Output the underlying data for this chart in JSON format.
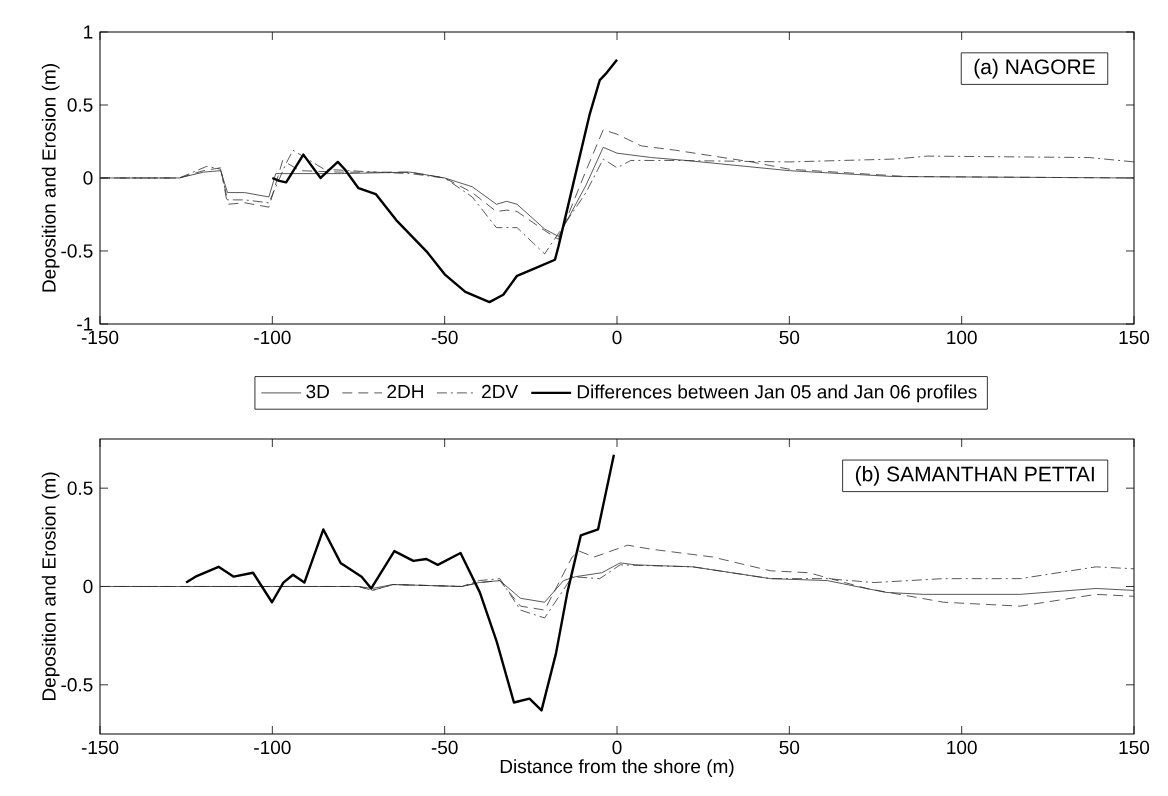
{
  "chart_data": [
    {
      "type": "line",
      "ylabel": "Deposition and Erosion (m)",
      "xlim": [
        -150,
        150
      ],
      "xticks": [
        -150,
        -100,
        -50,
        0,
        50,
        100,
        150
      ],
      "ylim": [
        -1,
        1
      ],
      "yticks": [
        -1,
        -0.5,
        0,
        0.5,
        1
      ],
      "legend": "bottom",
      "annotations": [
        "(a) NAGORE"
      ],
      "series": [
        {
          "name": "3D",
          "color": "#303030",
          "line_style": "solid",
          "x": [
            -150,
            -127,
            -120,
            -115,
            -113,
            -108,
            -101,
            -99,
            -95,
            -80,
            -60,
            -50,
            -42,
            -35,
            -32,
            -29,
            -21,
            -17,
            -9,
            -4,
            0,
            10,
            20,
            50,
            80,
            150
          ],
          "values": [
            0,
            0,
            0.04,
            0.05,
            -0.1,
            -0.1,
            -0.13,
            0.03,
            0.03,
            0.03,
            0.04,
            0,
            -0.06,
            -0.18,
            -0.16,
            -0.18,
            -0.35,
            -0.4,
            -0.05,
            0.21,
            0.17,
            0.14,
            0.12,
            0.05,
            0.01,
            0
          ]
        },
        {
          "name": "2DH",
          "color": "#303030",
          "line_style": "dashed",
          "x": [
            -150,
            -127,
            -120,
            -115,
            -113,
            -108,
            -101,
            -97,
            -92,
            -80,
            -60,
            -50,
            -42,
            -35,
            -32,
            -29,
            -21,
            -17,
            -9,
            -4,
            0,
            7,
            17,
            39,
            50,
            84,
            150
          ],
          "values": [
            0,
            0,
            0.05,
            0.07,
            -0.18,
            -0.17,
            -0.2,
            0.12,
            0.05,
            0.04,
            0.04,
            0,
            -0.1,
            -0.23,
            -0.22,
            -0.23,
            -0.36,
            -0.42,
            0.05,
            0.33,
            0.3,
            0.22,
            0.19,
            0.11,
            0.06,
            0.01,
            0
          ]
        },
        {
          "name": "2DV",
          "color": "#303030",
          "line_style": "dashdot",
          "x": [
            -150,
            -127,
            -119,
            -115,
            -113,
            -108,
            -101,
            -96,
            -94,
            -85,
            -70,
            -60,
            -50,
            -42,
            -35,
            -29,
            -21,
            -17,
            -9,
            -4,
            0,
            4,
            17,
            50,
            81,
            90,
            137,
            150
          ],
          "values": [
            0,
            0,
            0.08,
            0.06,
            -0.15,
            -0.15,
            -0.17,
            0.1,
            0.19,
            0.06,
            0.04,
            0.03,
            0,
            -0.13,
            -0.34,
            -0.34,
            -0.52,
            -0.38,
            -0.1,
            0.13,
            0.07,
            0.12,
            0.12,
            0.11,
            0.13,
            0.15,
            0.14,
            0.11
          ]
        },
        {
          "name": "Differences between Jan 05 and Jan 06 profiles",
          "color": "#000000",
          "line_style": "solid",
          "x": [
            -100,
            -98,
            -96,
            -91,
            -86,
            -81,
            -79,
            -75,
            -70,
            -64,
            -55,
            -50,
            -44,
            -37,
            -33,
            -29,
            -23,
            -18,
            -17,
            -12,
            -8,
            -5,
            -3,
            0
          ],
          "values": [
            0,
            -0.02,
            -0.03,
            0.16,
            0,
            0.11,
            0.06,
            -0.07,
            -0.11,
            -0.29,
            -0.51,
            -0.66,
            -0.78,
            -0.85,
            -0.8,
            -0.67,
            -0.61,
            -0.56,
            -0.47,
            0.03,
            0.43,
            0.67,
            0.72,
            0.81
          ]
        }
      ]
    },
    {
      "type": "line",
      "xlabel": "Distance from the shore (m)",
      "ylabel": "Deposition and Erosion (m)",
      "xlim": [
        -150,
        150
      ],
      "xticks": [
        -150,
        -100,
        -50,
        0,
        50,
        100,
        150
      ],
      "ylim": [
        -0.75,
        0.75
      ],
      "yticks": [
        -0.5,
        0,
        0.5
      ],
      "annotations": [
        "(b) SAMANTHAN PETTAI"
      ],
      "series": [
        {
          "color": "#303030",
          "line_style": "solid",
          "x": [
            -150,
            -75,
            -71,
            -65,
            -45,
            -40,
            -34,
            -28,
            -21,
            -15.5,
            -12,
            -4.4,
            0.9,
            5.4,
            22,
            44.5,
            61,
            78,
            89,
            117,
            139,
            150
          ],
          "values": [
            0,
            0,
            -0.01,
            0.01,
            0,
            0.02,
            0.03,
            -0.06,
            -0.08,
            0.03,
            0.05,
            0.07,
            0.12,
            0.11,
            0.1,
            0.04,
            0.03,
            -0.03,
            -0.04,
            -0.04,
            -0.01,
            -0.02
          ]
        },
        {
          "color": "#303030",
          "line_style": "dashed",
          "x": [
            -150,
            -75,
            -71,
            -65,
            -45,
            -40,
            -34,
            -28,
            -21,
            -13,
            -11,
            -6.6,
            3.1,
            9.8,
            27.7,
            44.5,
            55.6,
            72.4,
            94.7,
            117,
            139,
            150
          ],
          "values": [
            0,
            0,
            -0.02,
            0.01,
            0,
            0.02,
            0.03,
            -0.1,
            -0.12,
            0.15,
            0.18,
            0.15,
            0.21,
            0.19,
            0.15,
            0.08,
            0.07,
            -0.01,
            -0.08,
            -0.1,
            -0.04,
            -0.05
          ]
        },
        {
          "color": "#303030",
          "line_style": "dashdot",
          "x": [
            -150,
            -75,
            -71,
            -65,
            -45,
            -40,
            -34,
            -28,
            -21,
            -13,
            -5,
            0.9,
            22,
            44.5,
            61,
            74.6,
            94.7,
            117,
            139,
            150
          ],
          "values": [
            0,
            0,
            -0.02,
            0.01,
            0,
            0.03,
            0.04,
            -0.12,
            -0.16,
            0.05,
            0.04,
            0.11,
            0.1,
            0.04,
            0.04,
            0.02,
            0.04,
            0.04,
            0.1,
            0.09
          ]
        },
        {
          "color": "#000000",
          "line_style": "solid",
          "x": [
            -125,
            -122.3,
            -115.6,
            -111.2,
            -105.6,
            -100.1,
            -96.8,
            -94,
            -90.7,
            -85.2,
            -80.2,
            -74.1,
            -71.3,
            -64.6,
            -59.1,
            -55.3,
            -52,
            -45.4,
            -39.8,
            -34.9,
            -29.9,
            -25.4,
            -21.9,
            -17.7,
            -14.4,
            -10.5,
            -5.5,
            -0.9
          ],
          "values": [
            0.02,
            0.05,
            0.1,
            0.05,
            0.07,
            -0.08,
            0.02,
            0.06,
            0.02,
            0.29,
            0.12,
            0.05,
            -0.01,
            0.18,
            0.13,
            0.14,
            0.11,
            0.17,
            -0.03,
            -0.28,
            -0.59,
            -0.57,
            -0.63,
            -0.34,
            -0.03,
            0.26,
            0.29,
            0.67
          ]
        }
      ]
    }
  ]
}
